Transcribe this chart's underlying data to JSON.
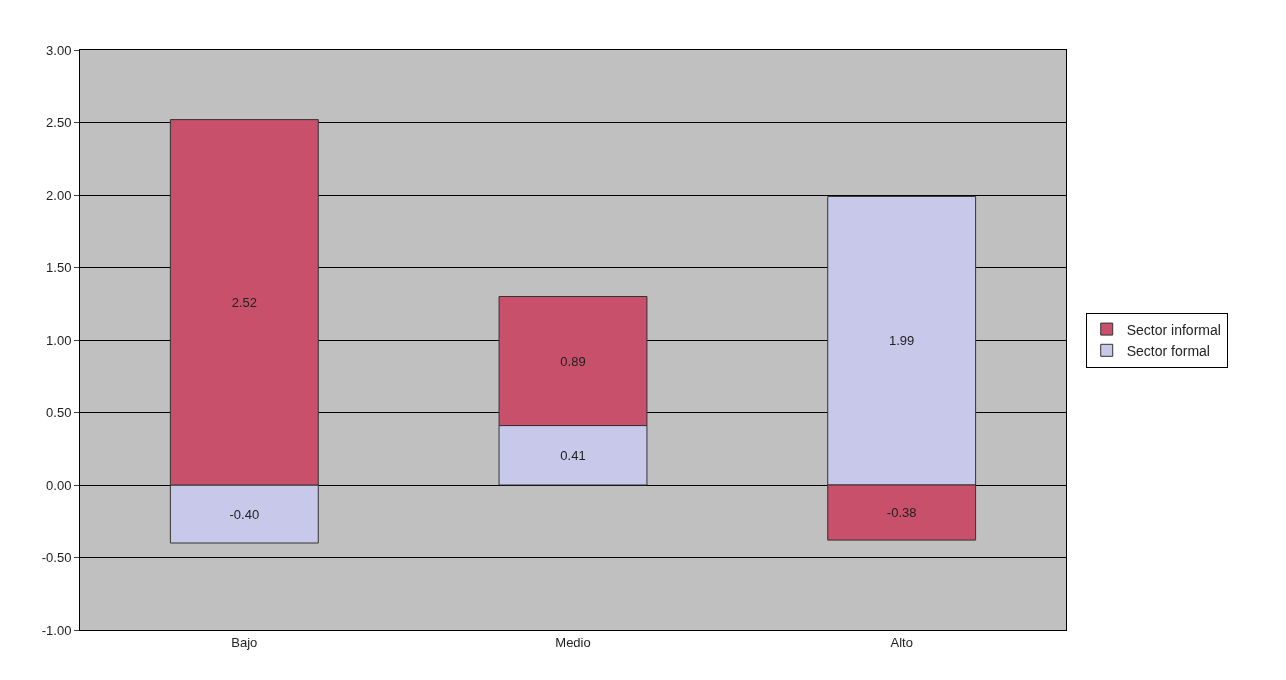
{
  "chart_data": {
    "type": "bar",
    "stacked": true,
    "categories": [
      "Bajo",
      "Medio",
      "Alto"
    ],
    "series": [
      {
        "name": "Sector formal",
        "color": "#c8c8ea",
        "values": [
          -0.4,
          0.41,
          1.99
        ],
        "value_labels": [
          "-0.40",
          "0.41",
          "1.99"
        ]
      },
      {
        "name": "Sector informal",
        "color": "#c8506a",
        "values": [
          2.52,
          0.89,
          -0.38
        ],
        "value_labels": [
          "2.52",
          "0.89",
          "-0.38"
        ]
      }
    ],
    "ylim": [
      -1,
      3
    ],
    "yticks": [
      {
        "value": -1,
        "label": "-1.00"
      },
      {
        "value": -0.5,
        "label": "-0.50"
      },
      {
        "value": 0,
        "label": "0.00"
      },
      {
        "value": 0.5,
        "label": "0.50"
      },
      {
        "value": 1,
        "label": "1.00"
      },
      {
        "value": 1.5,
        "label": "1.50"
      },
      {
        "value": 2,
        "label": "2.00"
      },
      {
        "value": 2.5,
        "label": "2.50"
      },
      {
        "value": 3,
        "label": "3.00"
      }
    ],
    "grid": "y",
    "legend": "right"
  }
}
